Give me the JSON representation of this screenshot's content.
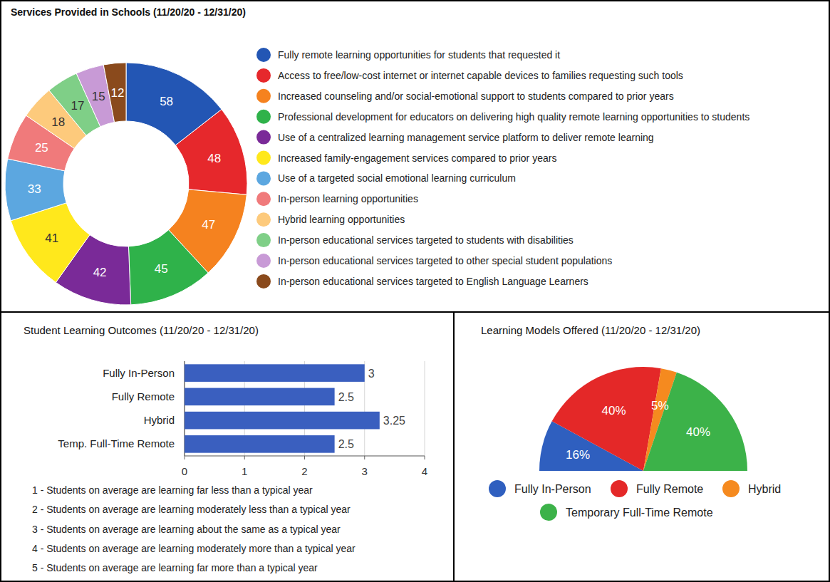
{
  "chart_data": [
    {
      "type": "donut",
      "title": "Services Provided in Schools (11/20/20 - 12/31/20)",
      "categories": [
        "Fully remote learning opportunities for students that requested it",
        "Access to free/low-cost internet or internet capable devices to families requesting such tools",
        "Increased counseling and/or social-emotional support to students compared to prior years",
        "Professional development for educators on delivering high quality remote learning opportunities to students",
        "Use of a centralized learning management service platform to deliver remote learning",
        "Increased family-engagement services compared to prior years",
        "Use of a targeted social emotional learning curriculum",
        "In-person learning opportunities",
        "Hybrid learning opportunities",
        "In-person educational services targeted to students with disabilities",
        "In-person educational services targeted to other special student populations",
        "In-person educational services targeted to English Language Learners"
      ],
      "values": [
        58,
        48,
        47,
        45,
        42,
        41,
        33,
        25,
        18,
        17,
        15,
        12
      ],
      "colors": [
        "#2356b4",
        "#e6282c",
        "#f5821f",
        "#2fb24a",
        "#7a2a98",
        "#ffe81c",
        "#5ca7e0",
        "#f07a7b",
        "#fdca7c",
        "#7fcf87",
        "#c89ad6",
        "#8a4a1c"
      ],
      "data_labels": true,
      "legend": "right"
    },
    {
      "type": "bar",
      "title": "Student Learning Outcomes  (11/20/20 - 12/31/20)",
      "orientation": "horizontal",
      "categories": [
        "Fully In-Person",
        "Fully Remote",
        "Hybrid",
        "Temp. Full-Time Remote"
      ],
      "values": [
        3,
        2.5,
        3.25,
        2.5
      ],
      "color": "#3a5fbf",
      "xlim": [
        0,
        4
      ],
      "xticks": [
        0,
        1,
        2,
        3,
        4
      ],
      "grid": true,
      "data_labels": true,
      "annotations": [
        "1 - Students on average are learning far less than a typical year",
        "2 - Students on average are learning moderately less than a typical year",
        "3 - Students on average are learning about the same as a typical year",
        "4 - Students on average are learning moderately more than a typical year",
        "5 - Students on average are learning far more than a typical year"
      ]
    },
    {
      "type": "semicircle",
      "title": "Learning Models Offered (11/20/20 - 12/31/20)",
      "categories": [
        "Fully In-Person",
        "Fully Remote",
        "Hybrid",
        "Temporary Full-Time Remote"
      ],
      "values": [
        16,
        40,
        5,
        40
      ],
      "value_labels": [
        "16%",
        "40%",
        "5%",
        "40%"
      ],
      "colors": [
        "#2f5fbf",
        "#e42828",
        "#f58a1f",
        "#3cb249"
      ],
      "data_labels": true,
      "legend": "bottom"
    }
  ]
}
